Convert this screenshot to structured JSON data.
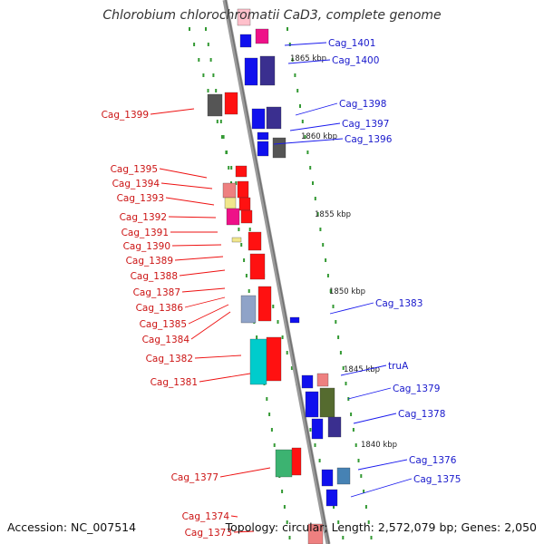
{
  "title": "Chlorobium chlorochromatii CaD3, complete genome",
  "accession_text": "Accession: NC_007514",
  "stats_text": "Topology: circular; Length: 2,572,079 bp; Genes: 2,050",
  "colors": {
    "forward_label": "#1818cc",
    "reverse_label": "#cc1414",
    "backbone": "#888888",
    "tick": "#339933"
  },
  "kbp_ticks": [
    "1865 kbp",
    "1860 kbp",
    "1855 kbp",
    "1850 kbp",
    "1845 kbp",
    "1840 kbp"
  ],
  "forward_genes": [
    {
      "name": "Cag_1401"
    },
    {
      "name": "Cag_1400"
    },
    {
      "name": "Cag_1398"
    },
    {
      "name": "Cag_1397"
    },
    {
      "name": "Cag_1396"
    },
    {
      "name": "Cag_1383"
    },
    {
      "name": "truA"
    },
    {
      "name": "Cag_1379"
    },
    {
      "name": "Cag_1378"
    },
    {
      "name": "Cag_1376"
    },
    {
      "name": "Cag_1375"
    }
  ],
  "reverse_genes": [
    {
      "name": "Cag_1399"
    },
    {
      "name": "Cag_1395"
    },
    {
      "name": "Cag_1394"
    },
    {
      "name": "Cag_1393"
    },
    {
      "name": "Cag_1392"
    },
    {
      "name": "Cag_1391"
    },
    {
      "name": "Cag_1390"
    },
    {
      "name": "Cag_1389"
    },
    {
      "name": "Cag_1388"
    },
    {
      "name": "Cag_1387"
    },
    {
      "name": "Cag_1386"
    },
    {
      "name": "Cag_1385"
    },
    {
      "name": "Cag_1384"
    },
    {
      "name": "Cag_1382"
    },
    {
      "name": "Cag_1381"
    },
    {
      "name": "Cag_1377"
    },
    {
      "name": "Cag_1374"
    },
    {
      "name": "Cag_1373"
    }
  ]
}
